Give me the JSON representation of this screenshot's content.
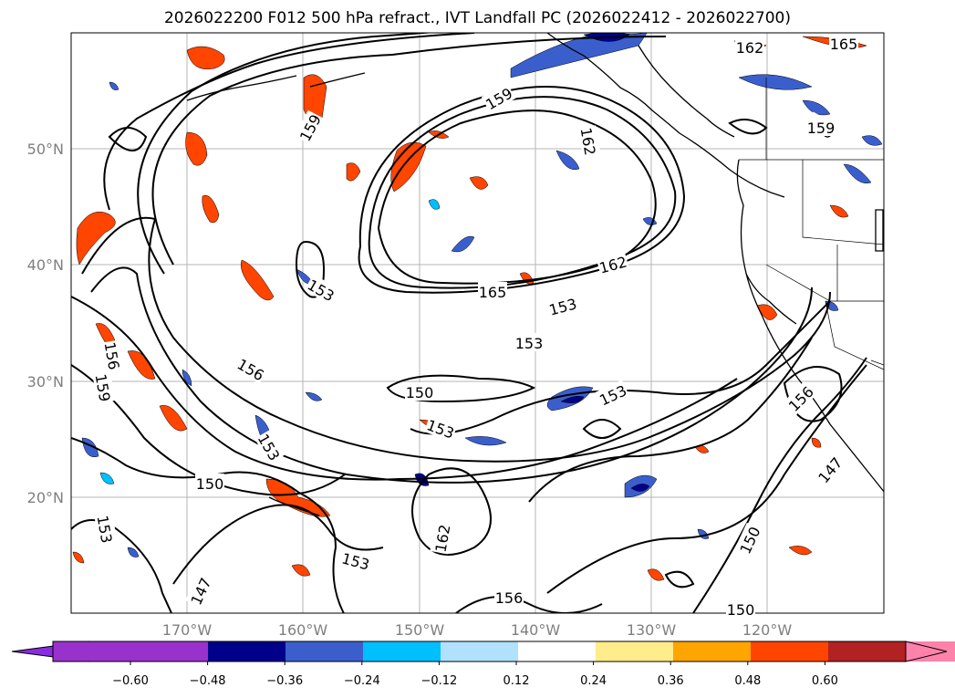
{
  "title": "2026022200 F012 500 hPa refract., IVT Landfall PC (2026022412 - 2026022700)",
  "latitude_labels": [
    "50°N",
    "40°N",
    "30°N",
    "20°N"
  ],
  "longitude_labels": [
    "170°W",
    "160°W",
    "150°W",
    "140°W",
    "130°W",
    "120°W"
  ],
  "contour_labels": [
    {
      "text": "159",
      "angle": -62
    },
    {
      "text": "159",
      "angle": -30
    },
    {
      "text": "162",
      "angle": 0
    },
    {
      "text": "162",
      "angle": 80
    },
    {
      "text": "165",
      "angle": 0
    },
    {
      "text": "165",
      "angle": 0
    },
    {
      "text": "162",
      "angle": -15
    },
    {
      "text": "159",
      "angle": 30
    },
    {
      "text": "153",
      "angle": 30
    },
    {
      "text": "153",
      "angle": -15
    },
    {
      "text": "153",
      "angle": 0
    },
    {
      "text": "156",
      "angle": 30
    },
    {
      "text": "156",
      "angle": 80
    },
    {
      "text": "159",
      "angle": 80
    },
    {
      "text": "150",
      "angle": 0
    },
    {
      "text": "153",
      "angle": 20
    },
    {
      "text": "153",
      "angle": -25
    },
    {
      "text": "153",
      "angle": 60
    },
    {
      "text": "150",
      "angle": 0
    },
    {
      "text": "162",
      "angle": -80
    },
    {
      "text": "153",
      "angle": 15
    },
    {
      "text": "153",
      "angle": 80
    },
    {
      "text": "147",
      "angle": -65
    },
    {
      "text": "156",
      "angle": 0
    },
    {
      "text": "150",
      "angle": 0
    },
    {
      "text": "150",
      "angle": -65
    },
    {
      "text": "147",
      "angle": -50
    },
    {
      "text": "156",
      "angle": -45
    },
    {
      "text": "159",
      "angle": 0
    }
  ],
  "colorbar": {
    "colors": [
      "#8a2be2",
      "#9932cc",
      "#00008b",
      "#3a5fcd",
      "#00bfff",
      "#b0e2ff",
      "#ffffff",
      "#ffec8b",
      "#ffa500",
      "#ff4500",
      "#b22222",
      "#ff82ab",
      "#ff82ab"
    ],
    "tick_labels": [
      "−0.60",
      "−0.48",
      "−0.36",
      "−0.24",
      "−0.12",
      "0.12",
      "0.24",
      "0.36",
      "0.48",
      "0.60"
    ]
  }
}
